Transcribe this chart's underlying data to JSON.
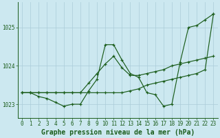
{
  "title": "Graphe pression niveau de la mer (hPa)",
  "background_color": "#cce8f0",
  "grid_color": "#aaccd8",
  "line_color": "#1a5c1a",
  "x_values": [
    0,
    1,
    2,
    3,
    4,
    5,
    6,
    7,
    8,
    9,
    10,
    11,
    12,
    13,
    14,
    15,
    16,
    17,
    18,
    19,
    20,
    21,
    22,
    23
  ],
  "line1_jagged": [
    1023.3,
    1023.3,
    1023.2,
    1023.15,
    1023.05,
    1022.95,
    1023.0,
    1023.0,
    1023.35,
    1023.65,
    1024.55,
    1024.55,
    1024.15,
    1023.8,
    1023.7,
    1023.3,
    1023.25,
    1022.95,
    1023.0,
    1024.1,
    1025.0,
    1025.05,
    1025.2,
    1025.35
  ],
  "line2_diagonal": [
    1023.3,
    1023.3,
    1023.3,
    1023.3,
    1023.3,
    1023.3,
    1023.3,
    1023.3,
    1023.3,
    1023.3,
    1023.3,
    1023.3,
    1023.3,
    1023.35,
    1023.4,
    1023.5,
    1023.55,
    1023.6,
    1023.65,
    1023.7,
    1023.75,
    1023.8,
    1023.9,
    1025.35
  ],
  "line3_smooth": [
    1023.3,
    1023.3,
    1023.3,
    1023.3,
    1023.3,
    1023.3,
    1023.3,
    1023.3,
    1023.55,
    1023.8,
    1024.05,
    1024.25,
    1023.95,
    1023.75,
    1023.75,
    1023.8,
    1023.85,
    1023.9,
    1024.0,
    1024.05,
    1024.1,
    1024.15,
    1024.2,
    1024.25
  ],
  "ylim": [
    1022.65,
    1025.65
  ],
  "yticks": [
    1023,
    1024,
    1025
  ],
  "xticks": [
    0,
    1,
    2,
    3,
    4,
    5,
    6,
    7,
    8,
    9,
    10,
    11,
    12,
    13,
    14,
    15,
    16,
    17,
    18,
    19,
    20,
    21,
    22,
    23
  ],
  "title_fontsize": 7.0,
  "tick_fontsize": 5.5,
  "marker": "+"
}
